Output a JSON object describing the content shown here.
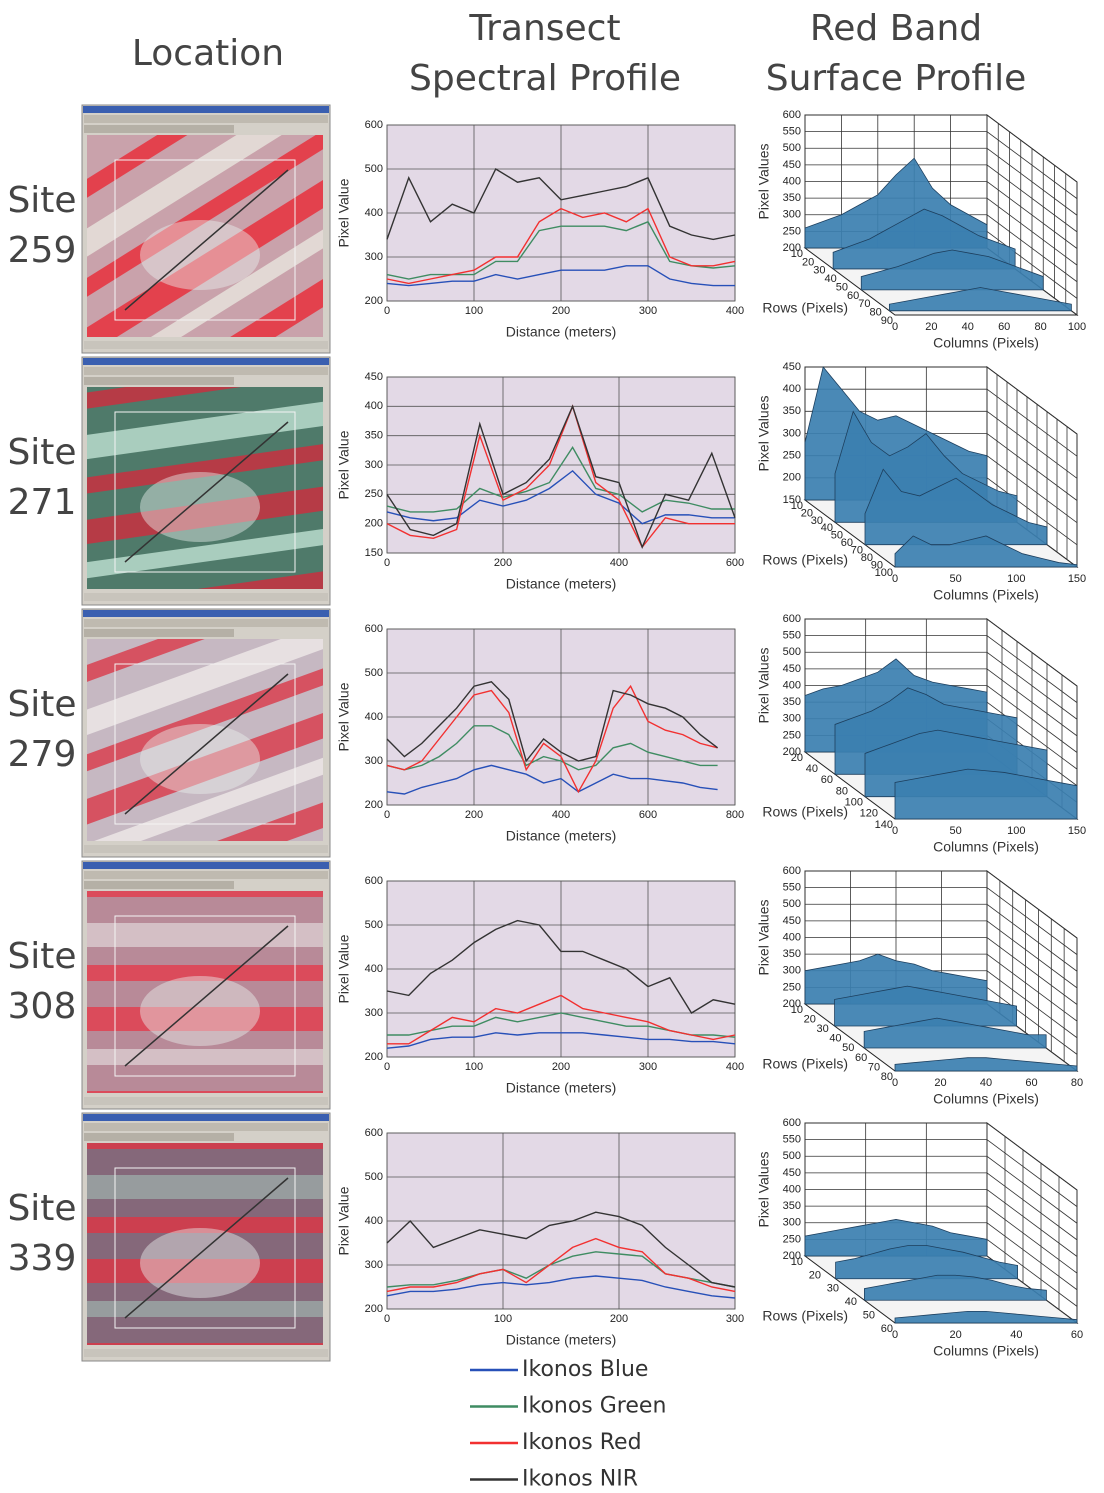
{
  "headers": [
    [
      "Location"
    ],
    [
      "Transect",
      "Spectral Profile"
    ],
    [
      "Red Band",
      "Surface Profile"
    ]
  ],
  "sites": [
    [
      "Site",
      "259"
    ],
    [
      "Site",
      "271"
    ],
    [
      "Site",
      "279"
    ],
    [
      "Site",
      "308"
    ],
    [
      "Site",
      "339"
    ]
  ],
  "legend": [
    {
      "name": "Ikonos Blue",
      "color": "#2750b8"
    },
    {
      "name": "Ikonos Green",
      "color": "#3f8c62"
    },
    {
      "name": "Ikonos Red",
      "color": "#f23030"
    },
    {
      "name": "Ikonos NIR",
      "color": "#333333"
    }
  ],
  "chart_data": [
    {
      "type": "line",
      "xlabel": "Distance (meters)",
      "ylabel": "Pixel Value",
      "grid": true,
      "x": [
        0,
        25,
        50,
        75,
        100,
        125,
        150,
        175,
        200,
        225,
        250,
        275,
        300,
        325,
        350,
        375,
        400
      ],
      "xlim": [
        0,
        400
      ],
      "xticks": [
        0,
        100,
        200,
        300,
        400
      ],
      "ylim": [
        200,
        600
      ],
      "yticks": [
        200,
        300,
        400,
        500,
        600
      ],
      "series": [
        {
          "values": [
            240,
            235,
            240,
            245,
            245,
            260,
            250,
            260,
            270,
            270,
            270,
            280,
            280,
            250,
            240,
            235,
            235
          ]
        },
        {
          "values": [
            260,
            250,
            260,
            260,
            260,
            290,
            290,
            360,
            370,
            370,
            370,
            360,
            380,
            290,
            280,
            275,
            280
          ]
        },
        {
          "values": [
            250,
            240,
            250,
            260,
            270,
            300,
            300,
            380,
            410,
            390,
            400,
            380,
            410,
            300,
            280,
            280,
            290
          ]
        },
        {
          "values": [
            340,
            480,
            380,
            420,
            400,
            500,
            470,
            480,
            430,
            440,
            450,
            460,
            480,
            370,
            350,
            340,
            350
          ]
        }
      ]
    },
    {
      "type": "line",
      "xlabel": "Distance (meters)",
      "ylabel": "Pixel Value",
      "grid": true,
      "x": [
        0,
        40,
        80,
        120,
        160,
        200,
        240,
        280,
        320,
        360,
        400,
        440,
        480,
        520,
        560,
        600
      ],
      "xlim": [
        0,
        600
      ],
      "xticks": [
        0,
        200,
        400,
        600
      ],
      "ylim": [
        150,
        450
      ],
      "yticks": [
        150,
        200,
        250,
        300,
        350,
        400,
        450
      ],
      "series": [
        {
          "values": [
            220,
            210,
            205,
            210,
            240,
            230,
            240,
            260,
            290,
            250,
            235,
            200,
            215,
            215,
            210,
            210
          ]
        },
        {
          "values": [
            230,
            220,
            220,
            225,
            260,
            245,
            255,
            270,
            330,
            260,
            250,
            220,
            240,
            235,
            225,
            225
          ]
        },
        {
          "values": [
            200,
            180,
            175,
            190,
            350,
            240,
            260,
            300,
            400,
            270,
            240,
            160,
            210,
            200,
            200,
            200
          ]
        },
        {
          "values": [
            250,
            190,
            180,
            200,
            370,
            250,
            270,
            310,
            400,
            280,
            270,
            160,
            250,
            240,
            320,
            210
          ]
        }
      ]
    },
    {
      "type": "line",
      "xlabel": "Distance (meters)",
      "ylabel": "Pixel Value",
      "grid": true,
      "x": [
        0,
        40,
        80,
        120,
        160,
        200,
        240,
        280,
        320,
        360,
        400,
        440,
        480,
        520,
        560,
        600,
        640,
        680,
        720,
        760
      ],
      "xlim": [
        0,
        800
      ],
      "xticks": [
        0,
        200,
        400,
        600,
        800
      ],
      "ylim": [
        200,
        600
      ],
      "yticks": [
        200,
        300,
        400,
        500,
        600
      ],
      "series": [
        {
          "values": [
            230,
            225,
            240,
            250,
            260,
            280,
            290,
            280,
            270,
            250,
            260,
            230,
            250,
            270,
            260,
            260,
            255,
            250,
            240,
            235
          ]
        },
        {
          "values": [
            290,
            280,
            290,
            310,
            340,
            380,
            380,
            360,
            290,
            310,
            300,
            280,
            290,
            330,
            340,
            320,
            310,
            300,
            290,
            290
          ]
        },
        {
          "values": [
            290,
            280,
            300,
            350,
            400,
            450,
            460,
            410,
            280,
            340,
            310,
            230,
            300,
            420,
            470,
            390,
            370,
            360,
            340,
            330
          ]
        },
        {
          "values": [
            350,
            310,
            340,
            380,
            420,
            470,
            480,
            440,
            300,
            350,
            320,
            300,
            310,
            460,
            450,
            430,
            420,
            400,
            360,
            330
          ]
        }
      ]
    },
    {
      "type": "line",
      "xlabel": "Distance (meters)",
      "ylabel": "Pixel Value",
      "grid": true,
      "x": [
        0,
        25,
        50,
        75,
        100,
        125,
        150,
        175,
        200,
        225,
        250,
        275,
        300,
        325,
        350,
        375,
        400
      ],
      "xlim": [
        0,
        400
      ],
      "xticks": [
        0,
        100,
        200,
        300,
        400
      ],
      "ylim": [
        200,
        600
      ],
      "yticks": [
        200,
        300,
        400,
        500,
        600
      ],
      "series": [
        {
          "values": [
            220,
            225,
            240,
            245,
            245,
            255,
            250,
            255,
            255,
            255,
            250,
            245,
            240,
            240,
            235,
            235,
            230
          ]
        },
        {
          "values": [
            250,
            250,
            260,
            270,
            270,
            290,
            280,
            290,
            300,
            290,
            280,
            270,
            270,
            260,
            250,
            250,
            245
          ]
        },
        {
          "values": [
            230,
            230,
            260,
            290,
            280,
            310,
            300,
            320,
            340,
            310,
            300,
            290,
            280,
            260,
            250,
            240,
            250
          ]
        },
        {
          "values": [
            350,
            340,
            390,
            420,
            460,
            490,
            510,
            500,
            440,
            440,
            420,
            400,
            360,
            380,
            300,
            330,
            320
          ]
        }
      ]
    },
    {
      "type": "line",
      "xlabel": "Distance (meters)",
      "ylabel": "Pixel Value",
      "grid": true,
      "x": [
        0,
        20,
        40,
        60,
        80,
        100,
        120,
        140,
        160,
        180,
        200,
        220,
        240,
        260,
        280,
        300
      ],
      "xlim": [
        0,
        300
      ],
      "xticks": [
        0,
        100,
        200,
        300
      ],
      "ylim": [
        200,
        600
      ],
      "yticks": [
        200,
        300,
        400,
        500,
        600
      ],
      "series": [
        {
          "values": [
            230,
            240,
            240,
            245,
            255,
            260,
            255,
            260,
            270,
            275,
            270,
            265,
            250,
            240,
            230,
            225
          ]
        },
        {
          "values": [
            250,
            255,
            255,
            265,
            280,
            290,
            270,
            300,
            320,
            330,
            325,
            320,
            280,
            270,
            260,
            250
          ]
        },
        {
          "values": [
            240,
            250,
            250,
            260,
            280,
            290,
            260,
            300,
            340,
            360,
            340,
            330,
            280,
            270,
            250,
            240
          ]
        },
        {
          "values": [
            350,
            400,
            340,
            360,
            380,
            370,
            360,
            390,
            400,
            420,
            410,
            390,
            340,
            300,
            260,
            250
          ]
        }
      ]
    },
    {
      "type": "surface",
      "xlabel": "Columns (Pixels)",
      "ylabel": "Rows (Pixels)",
      "zlabel": "Pixel Values",
      "color": "#3b7fb0",
      "x": [
        0,
        10,
        20,
        30,
        40,
        50,
        60,
        70,
        80,
        90,
        100
      ],
      "y": [
        10,
        35,
        60,
        85
      ],
      "xlim": [
        0,
        100
      ],
      "xticks": [
        0,
        20,
        40,
        60,
        80,
        100
      ],
      "ylim": [
        10,
        90
      ],
      "yticks": [
        10,
        20,
        30,
        40,
        50,
        60,
        70,
        80,
        90
      ],
      "zlim": [
        200,
        600
      ],
      "zticks": [
        200,
        250,
        300,
        350,
        400,
        450,
        500,
        550,
        600
      ],
      "values": [
        [
          260,
          280,
          300,
          330,
          360,
          420,
          470,
          380,
          330,
          300,
          270
        ],
        [
          250,
          270,
          290,
          320,
          350,
          380,
          360,
          330,
          300,
          280,
          260
        ],
        [
          240,
          255,
          270,
          290,
          310,
          320,
          310,
          300,
          280,
          260,
          240
        ],
        [
          220,
          230,
          240,
          250,
          260,
          270,
          260,
          250,
          240,
          230,
          220
        ]
      ]
    },
    {
      "type": "surface",
      "xlabel": "Columns (Pixels)",
      "ylabel": "Rows (Pixels)",
      "zlabel": "Pixel Values",
      "color": "#3b7fb0",
      "x": [
        0,
        15,
        30,
        45,
        60,
        75,
        90,
        105,
        120,
        135,
        150
      ],
      "y": [
        10,
        40,
        70,
        100
      ],
      "xlim": [
        0,
        150
      ],
      "xticks": [
        0,
        50,
        100,
        150
      ],
      "ylim": [
        10,
        100
      ],
      "yticks": [
        10,
        20,
        30,
        40,
        50,
        60,
        70,
        80,
        90,
        100
      ],
      "zlim": [
        150,
        450
      ],
      "zticks": [
        150,
        200,
        250,
        300,
        350,
        400,
        450
      ],
      "values": [
        [
          280,
          450,
          400,
          350,
          330,
          340,
          320,
          300,
          280,
          260,
          250
        ],
        [
          260,
          400,
          330,
          300,
          320,
          350,
          300,
          260,
          240,
          220,
          210
        ],
        [
          220,
          320,
          270,
          260,
          280,
          300,
          270,
          240,
          220,
          200,
          190
        ],
        [
          180,
          220,
          200,
          200,
          210,
          220,
          200,
          180,
          170,
          160,
          155
        ]
      ]
    },
    {
      "type": "surface",
      "xlabel": "Columns (Pixels)",
      "ylabel": "Rows (Pixels)",
      "zlabel": "Pixel Values",
      "color": "#3b7fb0",
      "x": [
        0,
        15,
        30,
        45,
        60,
        75,
        90,
        105,
        120,
        135,
        150
      ],
      "y": [
        20,
        60,
        100,
        140
      ],
      "xlim": [
        0,
        150
      ],
      "xticks": [
        0,
        50,
        100,
        150
      ],
      "ylim": [
        20,
        140
      ],
      "yticks": [
        20,
        40,
        60,
        80,
        100,
        120,
        140
      ],
      "zlim": [
        200,
        600
      ],
      "zticks": [
        200,
        250,
        300,
        350,
        400,
        450,
        500,
        550,
        600
      ],
      "values": [
        [
          370,
          390,
          400,
          420,
          440,
          480,
          430,
          410,
          400,
          390,
          380
        ],
        [
          350,
          370,
          390,
          420,
          460,
          440,
          410,
          400,
          390,
          380,
          370
        ],
        [
          330,
          350,
          370,
          390,
          400,
          390,
          380,
          370,
          360,
          350,
          340
        ],
        [
          310,
          320,
          330,
          340,
          350,
          345,
          340,
          330,
          320,
          310,
          300
        ]
      ]
    },
    {
      "type": "surface",
      "xlabel": "Columns (Pixels)",
      "ylabel": "Rows (Pixels)",
      "zlabel": "Pixel Values",
      "color": "#3b7fb0",
      "x": [
        0,
        8,
        16,
        24,
        32,
        40,
        48,
        56,
        64,
        72,
        80
      ],
      "y": [
        10,
        33,
        56,
        80
      ],
      "xlim": [
        0,
        80
      ],
      "xticks": [
        0,
        20,
        40,
        60,
        80
      ],
      "ylim": [
        10,
        80
      ],
      "yticks": [
        10,
        20,
        30,
        40,
        50,
        60,
        70,
        80
      ],
      "zlim": [
        200,
        600
      ],
      "zticks": [
        200,
        250,
        300,
        350,
        400,
        450,
        500,
        550,
        600
      ],
      "values": [
        [
          300,
          310,
          320,
          330,
          350,
          330,
          320,
          300,
          290,
          280,
          270
        ],
        [
          280,
          290,
          300,
          310,
          320,
          310,
          300,
          290,
          280,
          270,
          260
        ],
        [
          250,
          260,
          270,
          280,
          290,
          280,
          270,
          260,
          250,
          240,
          240
        ],
        [
          220,
          225,
          230,
          235,
          240,
          240,
          235,
          230,
          225,
          220,
          215
        ]
      ]
    },
    {
      "type": "surface",
      "xlabel": "Columns (Pixels)",
      "ylabel": "Rows (Pixels)",
      "zlabel": "Pixel Values",
      "color": "#3b7fb0",
      "x": [
        0,
        6,
        12,
        18,
        24,
        30,
        36,
        42,
        48,
        54,
        60
      ],
      "y": [
        10,
        27,
        43,
        60
      ],
      "xlim": [
        0,
        60
      ],
      "xticks": [
        0,
        20,
        40,
        60
      ],
      "ylim": [
        10,
        60
      ],
      "yticks": [
        10,
        20,
        30,
        40,
        50,
        60
      ],
      "zlim": [
        200,
        600
      ],
      "zticks": [
        200,
        250,
        300,
        350,
        400,
        450,
        500,
        550,
        600
      ],
      "values": [
        [
          260,
          270,
          280,
          290,
          300,
          310,
          300,
          290,
          270,
          260,
          250
        ],
        [
          250,
          260,
          275,
          290,
          300,
          300,
          290,
          280,
          265,
          250,
          240
        ],
        [
          235,
          245,
          255,
          265,
          275,
          275,
          270,
          260,
          245,
          235,
          230
        ],
        [
          215,
          220,
          225,
          230,
          235,
          235,
          230,
          225,
          220,
          215,
          210
        ]
      ]
    }
  ]
}
